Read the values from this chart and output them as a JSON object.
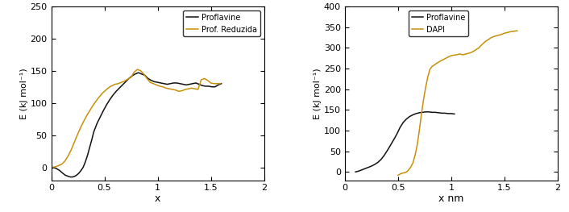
{
  "left": {
    "ylabel": "E (kJ mol⁻¹)",
    "xlabel": "x",
    "xlim": [
      0,
      2
    ],
    "ylim": [
      -20,
      250
    ],
    "yticks": [
      0,
      50,
      100,
      150,
      200,
      250
    ],
    "xticks": [
      0,
      0.5,
      1,
      1.5,
      2
    ],
    "legend": [
      "Proflavine",
      "Prof. Reduzida"
    ],
    "line_colors": [
      "#111111",
      "#c8900a"
    ],
    "line_width": 1.1
  },
  "right": {
    "ylabel": "E (kJ mol⁻¹)",
    "xlabel": "x nm",
    "xlim": [
      0,
      2
    ],
    "ylim": [
      -20,
      400
    ],
    "yticks": [
      0,
      50,
      100,
      150,
      200,
      250,
      300,
      350,
      400
    ],
    "xticks": [
      0,
      0.5,
      1,
      1.5,
      2
    ],
    "legend": [
      "Proflavine",
      "DAPI"
    ],
    "line_colors": [
      "#111111",
      "#c8900a"
    ],
    "line_width": 1.1
  }
}
